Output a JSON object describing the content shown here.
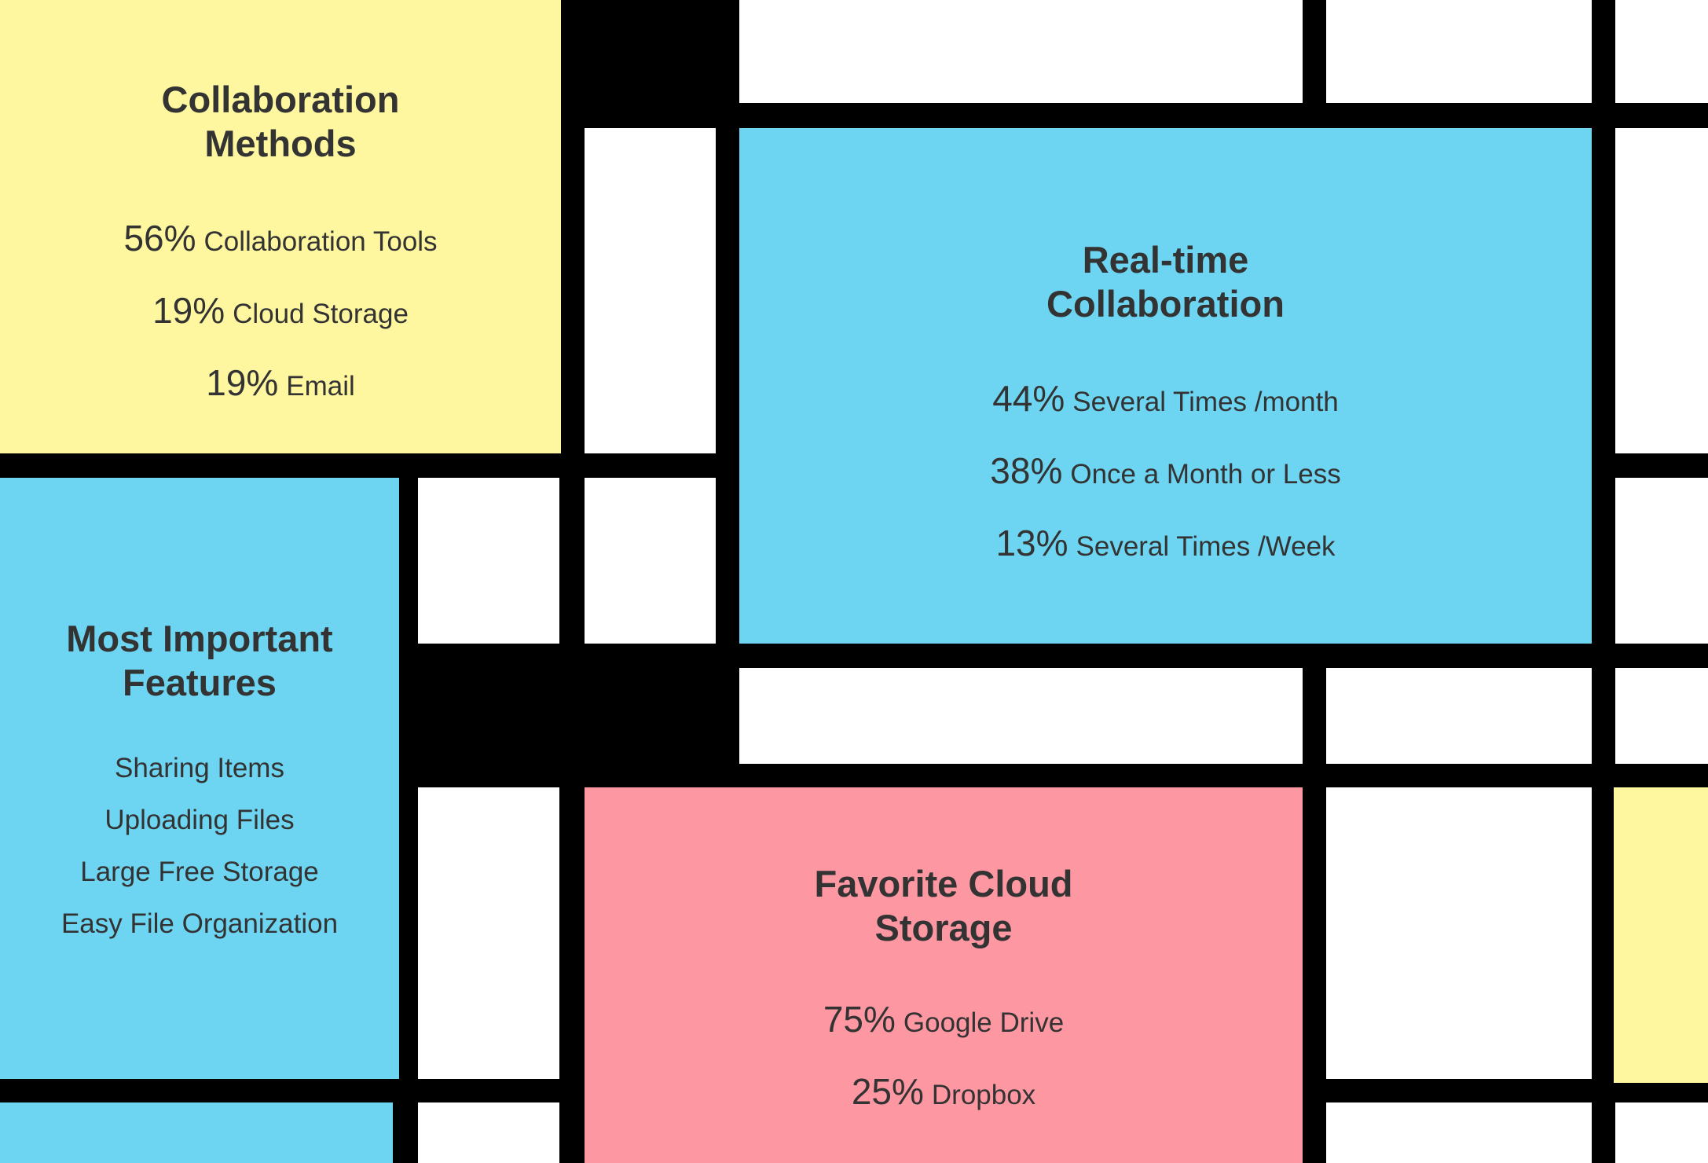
{
  "colors": {
    "grid_lines": "#000000",
    "yellow": "#fef79f",
    "blue": "#6dd5f1",
    "pink": "#fd97a2",
    "white": "#ffffff",
    "text": "#333333"
  },
  "collaboration_methods": {
    "title_line1": "Collaboration",
    "title_line2": "Methods",
    "items": [
      {
        "pct": "56%",
        "label": "Collaboration Tools"
      },
      {
        "pct": "19%",
        "label": "Cloud Storage"
      },
      {
        "pct": "19%",
        "label": "Email"
      }
    ]
  },
  "realtime_collaboration": {
    "title_line1": "Real-time",
    "title_line2": "Collaboration",
    "items": [
      {
        "pct": "44%",
        "label": "Several Times /month"
      },
      {
        "pct": "38%",
        "label": "Once a Month or Less"
      },
      {
        "pct": "13%",
        "label": "Several Times /Week"
      }
    ]
  },
  "most_important_features": {
    "title_line1": "Most Important",
    "title_line2": "Features",
    "items": [
      "Sharing Items",
      "Uploading Files",
      "Large Free Storage",
      "Easy File Organization"
    ]
  },
  "favorite_cloud_storage": {
    "title_line1": "Favorite Cloud",
    "title_line2": "Storage",
    "items": [
      {
        "pct": "75%",
        "label": "Google Drive"
      },
      {
        "pct": "25%",
        "label": "Dropbox"
      }
    ]
  }
}
